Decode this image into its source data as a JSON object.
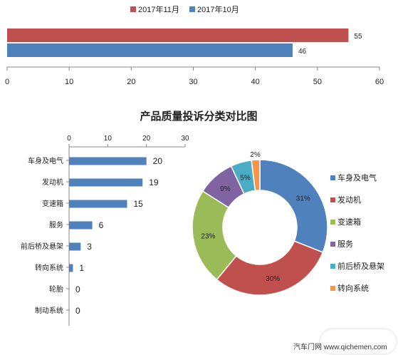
{
  "chart_data": [
    {
      "type": "bar",
      "orientation": "horizontal",
      "series": [
        {
          "name": "2017年11月",
          "color": "#c0504d",
          "values": [
            55
          ]
        },
        {
          "name": "2017年10月",
          "color": "#4f81bd",
          "values": [
            46
          ]
        }
      ],
      "xlim": [
        0,
        60
      ],
      "xticks": [
        0,
        10,
        20,
        30,
        40,
        50,
        60
      ],
      "legend": "top"
    },
    {
      "type": "bar",
      "orientation": "horizontal",
      "title": "产品质量投诉分类对比图",
      "categories": [
        "车身及电气",
        "发动机",
        "变速箱",
        "服务",
        "前后桥及悬架",
        "转向系统",
        "轮胎",
        "制动系统"
      ],
      "values": [
        20,
        19,
        15,
        6,
        3,
        1,
        0,
        0
      ],
      "color": "#4f81bd",
      "xlim": [
        0,
        30
      ],
      "xticks": [
        0,
        10,
        20,
        30
      ],
      "axis_position": "top"
    },
    {
      "type": "pie",
      "donut": true,
      "labels": [
        "车身及电气",
        "发动机",
        "变速箱",
        "服务",
        "前后桥及悬架",
        "转向系统"
      ],
      "values": [
        31,
        30,
        23,
        9,
        5,
        2
      ],
      "value_labels": [
        "31%",
        "30%",
        "23%",
        "9%",
        "5%",
        "2%"
      ],
      "colors": [
        "#4f81bd",
        "#c0504d",
        "#9bbb59",
        "#8064a2",
        "#4bacc6",
        "#f79646"
      ],
      "legend": "right"
    }
  ],
  "footer": "汽车门网 www.qichemen.com"
}
